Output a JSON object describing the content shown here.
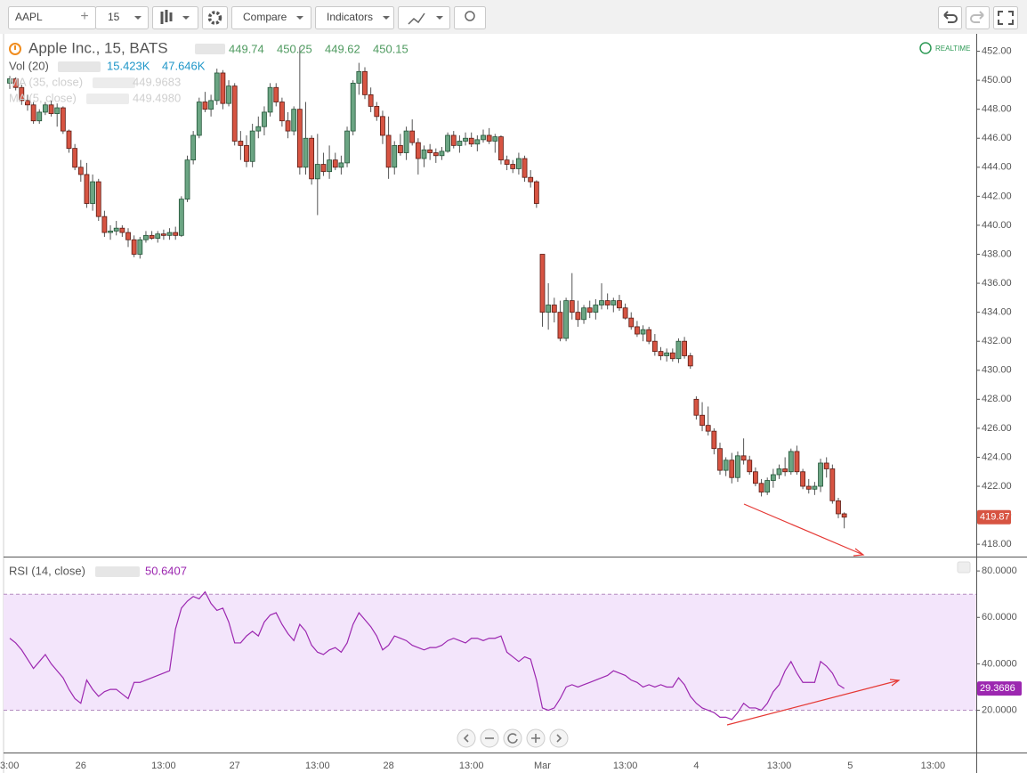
{
  "toolbar": {
    "symbol": "AAPL",
    "interval": "15",
    "compare": "Compare",
    "indicators": "Indicators"
  },
  "chart_data": [
    {
      "type": "candlestick",
      "title": "Apple Inc., 15, BATS",
      "ohlc_legend": [
        449.74,
        450.25,
        449.62,
        450.15
      ],
      "indicators": [
        {
          "name": "Vol (20)",
          "values": [
            "15.423K",
            "47.646K"
          ]
        },
        {
          "name": "MA (35, close)",
          "values": [
            "449.9683"
          ]
        },
        {
          "name": "MA (5, close)",
          "values": [
            "449.4980"
          ]
        }
      ],
      "status": "REALTIME",
      "up_color": "#6ba583",
      "down_color": "#d75442",
      "ylim": [
        417.15,
        453.2
      ],
      "yticks": [
        {
          "value": 418,
          "label": "418.00"
        },
        {
          "value": 420,
          "label": "420.00"
        },
        {
          "value": 422,
          "label": "422.00"
        },
        {
          "value": 424,
          "label": "424.00"
        },
        {
          "value": 426,
          "label": "426.00"
        },
        {
          "value": 428,
          "label": "428.00"
        },
        {
          "value": 430,
          "label": "430.00"
        },
        {
          "value": 432,
          "label": "432.00"
        },
        {
          "value": 434,
          "label": "434.00"
        },
        {
          "value": 436,
          "label": "436.00"
        },
        {
          "value": 438,
          "label": "438.00"
        },
        {
          "value": 440,
          "label": "440.00"
        },
        {
          "value": 442,
          "label": "442.00"
        },
        {
          "value": 444,
          "label": "444.00"
        },
        {
          "value": 446,
          "label": "446.00"
        },
        {
          "value": 448,
          "label": "448.00"
        },
        {
          "value": 450,
          "label": "450.00"
        },
        {
          "value": 452,
          "label": "452.00"
        }
      ],
      "grid": false,
      "candles": [
        [
          449.8,
          450.3,
          449.4,
          450.1
        ],
        [
          450.1,
          450.2,
          449.3,
          449.5
        ],
        [
          449.5,
          449.7,
          448.3,
          448.6
        ],
        [
          448.6,
          449.0,
          447.9,
          448.3
        ],
        [
          448.3,
          448.5,
          447.0,
          447.2
        ],
        [
          447.2,
          448.0,
          447.0,
          447.8
        ],
        [
          447.8,
          448.5,
          447.6,
          448.3
        ],
        [
          448.3,
          448.6,
          447.5,
          447.7
        ],
        [
          447.7,
          448.4,
          446.8,
          448.1
        ],
        [
          448.1,
          448.2,
          446.3,
          446.5
        ],
        [
          446.5,
          446.6,
          445.0,
          445.3
        ],
        [
          445.3,
          445.6,
          443.8,
          444.0
        ],
        [
          444.0,
          444.5,
          443.0,
          443.5
        ],
        [
          443.5,
          444.3,
          441.2,
          441.5
        ],
        [
          441.5,
          443.5,
          441.0,
          443.0
        ],
        [
          443.0,
          443.2,
          440.3,
          440.6
        ],
        [
          440.6,
          441.0,
          439.2,
          439.5
        ],
        [
          439.5,
          440.0,
          439.0,
          439.6
        ],
        [
          439.6,
          440.3,
          439.3,
          439.8
        ],
        [
          439.8,
          440.0,
          439.2,
          439.5
        ],
        [
          439.5,
          439.8,
          438.5,
          439.0
        ],
        [
          439.0,
          439.3,
          437.8,
          438.0
        ],
        [
          438.0,
          439.2,
          437.7,
          439.0
        ],
        [
          439.0,
          439.6,
          438.8,
          439.3
        ],
        [
          439.3,
          439.6,
          439.0,
          439.1
        ],
        [
          439.1,
          439.6,
          438.8,
          439.4
        ],
        [
          439.4,
          439.7,
          439.0,
          439.3
        ],
        [
          439.3,
          439.8,
          439.0,
          439.5
        ],
        [
          439.5,
          439.9,
          439.0,
          439.3
        ],
        [
          439.3,
          442.0,
          439.2,
          441.8
        ],
        [
          441.8,
          444.8,
          441.6,
          444.5
        ],
        [
          444.5,
          446.5,
          444.2,
          446.2
        ],
        [
          446.2,
          448.8,
          446.0,
          448.5
        ],
        [
          448.5,
          449.2,
          447.8,
          448.0
        ],
        [
          448.0,
          449.0,
          447.5,
          448.6
        ],
        [
          448.6,
          450.8,
          448.3,
          450.5
        ],
        [
          450.5,
          450.7,
          448.0,
          448.4
        ],
        [
          448.4,
          450.0,
          448.2,
          449.6
        ],
        [
          449.6,
          449.8,
          445.5,
          445.8
        ],
        [
          445.8,
          446.5,
          444.5,
          445.5
        ],
        [
          445.5,
          446.2,
          444.0,
          444.4
        ],
        [
          444.4,
          447.0,
          444.0,
          446.5
        ],
        [
          446.5,
          447.5,
          446.0,
          446.8
        ],
        [
          446.8,
          448.2,
          446.2,
          447.8
        ],
        [
          447.8,
          449.8,
          447.5,
          449.5
        ],
        [
          449.5,
          449.8,
          448.2,
          448.5
        ],
        [
          448.5,
          448.8,
          446.8,
          447.2
        ],
        [
          447.2,
          447.8,
          446.0,
          446.5
        ],
        [
          446.5,
          448.2,
          446.2,
          448.0
        ],
        [
          448.0,
          452.3,
          443.5,
          444.0
        ],
        [
          444.0,
          448.5,
          443.5,
          446.0
        ],
        [
          446.0,
          446.2,
          442.8,
          443.2
        ],
        [
          443.2,
          446.3,
          440.7,
          444.2
        ],
        [
          444.2,
          445.0,
          443.4,
          443.7
        ],
        [
          443.7,
          445.5,
          443.2,
          444.5
        ],
        [
          444.5,
          445.0,
          443.8,
          444.0
        ],
        [
          444.0,
          444.8,
          443.5,
          444.3
        ],
        [
          444.3,
          446.8,
          444.0,
          446.5
        ],
        [
          446.5,
          450.0,
          446.2,
          449.8
        ],
        [
          449.8,
          451.2,
          449.0,
          450.6
        ],
        [
          450.6,
          450.9,
          448.7,
          449.0
        ],
        [
          449.0,
          449.5,
          447.8,
          448.2
        ],
        [
          448.2,
          448.5,
          447.2,
          447.5
        ],
        [
          447.5,
          447.9,
          445.6,
          446.2
        ],
        [
          446.2,
          447.5,
          443.2,
          444.0
        ],
        [
          444.0,
          445.8,
          443.5,
          445.5
        ],
        [
          445.5,
          446.3,
          444.8,
          445.0
        ],
        [
          445.0,
          446.8,
          444.5,
          446.5
        ],
        [
          446.5,
          447.3,
          445.5,
          445.7
        ],
        [
          445.7,
          446.0,
          443.5,
          444.6
        ],
        [
          444.6,
          445.5,
          444.0,
          445.2
        ],
        [
          445.2,
          445.6,
          444.5,
          445.0
        ],
        [
          445.0,
          445.3,
          444.3,
          444.8
        ],
        [
          444.8,
          445.4,
          444.5,
          445.1
        ],
        [
          445.1,
          446.4,
          445.0,
          446.2
        ],
        [
          446.2,
          446.5,
          445.3,
          445.5
        ],
        [
          445.5,
          446.2,
          445.0,
          445.8
        ],
        [
          445.8,
          446.4,
          445.5,
          446.0
        ],
        [
          446.0,
          446.4,
          445.4,
          445.6
        ],
        [
          445.6,
          446.2,
          445.1,
          445.9
        ],
        [
          445.9,
          446.6,
          445.7,
          446.2
        ],
        [
          446.2,
          446.7,
          445.6,
          445.8
        ],
        [
          445.8,
          446.3,
          445.0,
          446.1
        ],
        [
          446.1,
          446.2,
          444.2,
          444.5
        ],
        [
          444.5,
          444.8,
          443.8,
          444.2
        ],
        [
          444.2,
          444.5,
          443.6,
          443.9
        ],
        [
          443.9,
          445.0,
          443.5,
          444.6
        ],
        [
          444.6,
          444.8,
          443.0,
          443.3
        ],
        [
          443.3,
          443.8,
          442.6,
          443.0
        ],
        [
          443.0,
          443.1,
          441.2,
          441.5
        ],
        [
          438.0,
          438.0,
          433.0,
          434.0
        ],
        [
          434.0,
          436.0,
          432.8,
          434.5
        ],
        [
          434.5,
          435.0,
          433.3,
          434.0
        ],
        [
          434.0,
          434.8,
          432.0,
          432.2
        ],
        [
          432.2,
          435.0,
          432.0,
          434.8
        ],
        [
          434.8,
          436.7,
          433.5,
          434.0
        ],
        [
          434.0,
          434.8,
          433.0,
          433.5
        ],
        [
          433.5,
          434.5,
          433.2,
          434.3
        ],
        [
          434.3,
          434.8,
          433.6,
          434.0
        ],
        [
          434.0,
          434.9,
          433.5,
          434.5
        ],
        [
          434.5,
          436.0,
          434.2,
          434.8
        ],
        [
          434.8,
          435.3,
          434.2,
          434.5
        ],
        [
          434.5,
          435.0,
          434.0,
          434.8
        ],
        [
          434.8,
          435.2,
          434.1,
          434.3
        ],
        [
          434.3,
          434.6,
          433.5,
          433.6
        ],
        [
          433.6,
          434.0,
          432.8,
          433.0
        ],
        [
          433.0,
          433.4,
          432.3,
          432.5
        ],
        [
          432.5,
          433.1,
          432.0,
          432.8
        ],
        [
          432.8,
          433.0,
          431.8,
          432.0
        ],
        [
          432.0,
          432.5,
          431.0,
          431.3
        ],
        [
          431.3,
          431.6,
          430.7,
          431.0
        ],
        [
          431.0,
          431.5,
          430.6,
          431.2
        ],
        [
          431.2,
          431.5,
          430.6,
          430.8
        ],
        [
          430.8,
          432.2,
          430.5,
          432.0
        ],
        [
          432.0,
          432.3,
          430.8,
          431.0
        ],
        [
          431.0,
          431.2,
          430.1,
          430.3
        ],
        [
          428.0,
          428.2,
          426.6,
          426.9
        ],
        [
          426.9,
          427.8,
          425.8,
          426.2
        ],
        [
          426.2,
          427.5,
          425.5,
          425.8
        ],
        [
          425.8,
          426.0,
          424.2,
          424.6
        ],
        [
          424.6,
          425.0,
          422.8,
          423.1
        ],
        [
          423.1,
          424.0,
          422.7,
          423.8
        ],
        [
          423.8,
          424.3,
          422.2,
          422.6
        ],
        [
          422.6,
          424.4,
          422.3,
          424.1
        ],
        [
          424.1,
          425.3,
          423.5,
          423.8
        ],
        [
          423.8,
          424.1,
          422.8,
          423.0
        ],
        [
          423.0,
          423.3,
          422.0,
          422.2
        ],
        [
          422.2,
          422.5,
          421.3,
          421.6
        ],
        [
          421.6,
          422.6,
          421.4,
          422.4
        ],
        [
          422.4,
          423.2,
          421.9,
          422.8
        ],
        [
          422.8,
          423.5,
          422.5,
          423.2
        ],
        [
          423.2,
          424.0,
          422.7,
          423.0
        ],
        [
          423.0,
          424.6,
          422.8,
          424.4
        ],
        [
          424.4,
          424.8,
          422.8,
          423.0
        ],
        [
          423.0,
          423.2,
          421.8,
          422.0
        ],
        [
          422.0,
          422.5,
          421.5,
          421.8
        ],
        [
          421.8,
          422.3,
          421.4,
          422.0
        ],
        [
          422.0,
          423.9,
          421.6,
          423.6
        ],
        [
          423.6,
          424.0,
          422.6,
          423.2
        ],
        [
          423.2,
          423.5,
          420.8,
          421.0
        ],
        [
          421.0,
          421.2,
          419.8,
          420.1
        ],
        [
          420.1,
          420.2,
          419.1,
          419.87
        ]
      ]
    },
    {
      "type": "line",
      "title": "RSI (14, close)",
      "legend_value": 50.6407,
      "color": "#9c27b0",
      "band": [
        20,
        70
      ],
      "band_color": "#f3e5fb",
      "ylim": [
        1.8,
        85.8
      ],
      "yticks": [
        {
          "value": 20,
          "label": "20.0000"
        },
        {
          "value": 40,
          "label": "40.0000"
        },
        {
          "value": 60,
          "label": "60.0000"
        },
        {
          "value": 80,
          "label": "80.0000"
        }
      ],
      "categories": [
        "3:00",
        null,
        null,
        null,
        null,
        null,
        null,
        null,
        null,
        null,
        null,
        null,
        "26",
        null,
        null,
        null,
        null,
        null,
        null,
        null,
        null,
        null,
        null,
        null,
        null,
        null,
        "13:00",
        null,
        null,
        null,
        null,
        null,
        null,
        null,
        null,
        null,
        null,
        null,
        "27",
        null,
        null,
        null,
        null,
        null,
        null,
        null,
        null,
        null,
        null,
        null,
        null,
        null,
        "13:00",
        null,
        null,
        null,
        null,
        null,
        null,
        null,
        null,
        null,
        null,
        null,
        "28",
        null,
        null,
        null,
        null,
        null,
        null,
        null,
        null,
        null,
        null,
        null,
        null,
        null,
        "13:00",
        null,
        null,
        null,
        null,
        null,
        null,
        null,
        null,
        null,
        null,
        null,
        "Mar",
        null,
        null,
        null,
        null,
        null,
        null,
        null,
        null,
        null,
        null,
        null,
        null,
        null,
        "13:00",
        null,
        null,
        null,
        null,
        null,
        null,
        null,
        null,
        null,
        null,
        null,
        "4",
        null,
        null,
        null,
        null,
        null,
        null,
        null,
        null,
        null,
        null,
        null,
        null,
        null,
        "13:00",
        null,
        null,
        null,
        null,
        null,
        null,
        null,
        null,
        null,
        null,
        null,
        "5",
        null,
        null,
        null,
        null,
        null,
        null,
        null,
        null,
        null,
        null,
        null,
        null,
        null,
        "13:00",
        null,
        null,
        null,
        null,
        null,
        null,
        null
      ],
      "values": [
        51,
        49,
        46,
        42,
        38,
        41,
        44,
        40,
        37,
        34,
        29,
        25,
        23,
        33,
        29,
        26,
        28,
        29,
        29,
        27,
        25,
        32,
        32,
        33,
        34,
        35,
        36,
        37,
        55,
        64,
        67,
        69,
        68,
        71,
        66,
        63,
        64,
        58,
        49,
        49,
        52,
        54,
        52,
        58,
        61,
        62,
        57,
        53,
        50,
        57,
        54,
        48,
        45,
        44,
        46,
        47,
        45,
        49,
        57,
        62,
        59,
        56,
        52,
        46,
        48,
        52,
        51,
        50,
        48,
        47,
        46,
        47,
        47,
        48,
        50,
        51,
        50,
        49,
        51,
        51,
        50,
        51,
        51,
        52,
        45,
        43,
        41,
        43,
        42,
        33,
        21,
        20,
        21,
        25,
        30,
        31,
        30,
        31,
        32,
        33,
        34,
        35,
        37,
        36,
        35,
        33,
        32,
        30,
        31,
        30,
        31,
        30,
        30,
        34,
        31,
        26,
        23,
        21,
        20,
        19,
        17,
        17,
        16,
        19,
        23,
        21,
        21,
        20,
        23,
        28,
        31,
        37,
        41,
        36,
        32,
        32,
        32,
        41,
        39,
        36,
        31,
        29.3686,
        null,
        null,
        null,
        null,
        null,
        null,
        null,
        null,
        null,
        null,
        null,
        null,
        null,
        null,
        null,
        null,
        null,
        null,
        null,
        null,
        null,
        null
      ]
    }
  ]
}
